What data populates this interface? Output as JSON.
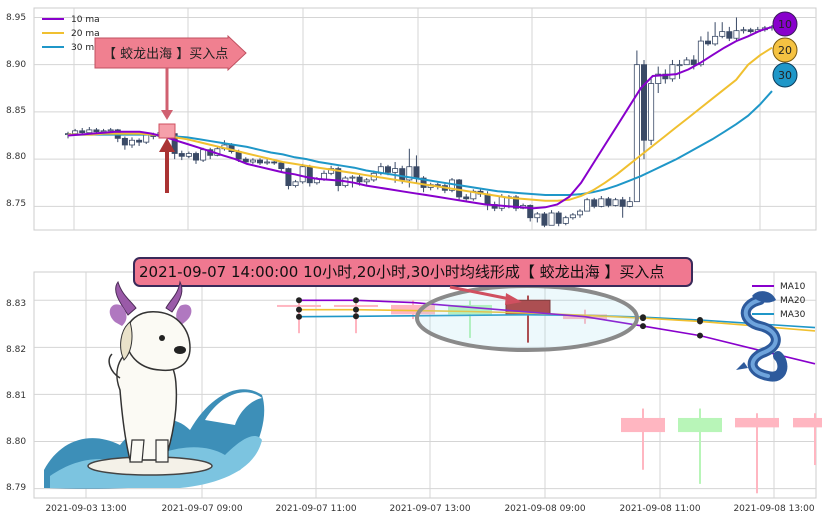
{
  "colors": {
    "ma10": "#8800cc",
    "ma20": "#f0c030",
    "ma30": "#1f97c8",
    "up": "#ffffff",
    "down": "#3a4a66",
    "annotation_fill": "#f08090",
    "arrow": "#aa3333",
    "ellipse": "#8a8a8a",
    "grid": "#d5d5d5"
  },
  "chart_data": [
    {
      "type": "candlestick",
      "panel": "top",
      "ylim": [
        8.725,
        8.96
      ],
      "yticks": [
        "8.95",
        "8.90",
        "8.85",
        "8.80",
        "8.75"
      ],
      "legend": {
        "placement": "top-left",
        "entries": [
          "10 ma",
          "20 ma",
          "30 ma"
        ]
      },
      "ma_circles": [
        "10",
        "20",
        "30"
      ],
      "annotation": {
        "label": "【 蛟龙出海 】买入点"
      },
      "candles": [
        [
          8.826,
          8.827,
          8.829,
          8.822
        ],
        [
          8.827,
          8.83,
          8.832,
          8.825
        ],
        [
          8.83,
          8.828,
          8.833,
          8.826
        ],
        [
          8.828,
          8.831,
          8.834,
          8.826
        ],
        [
          8.831,
          8.829,
          8.833,
          8.827
        ],
        [
          8.829,
          8.83,
          8.832,
          8.826
        ],
        [
          8.83,
          8.831,
          8.833,
          8.828
        ],
        [
          8.831,
          8.822,
          8.832,
          8.818
        ],
        [
          8.822,
          8.815,
          8.824,
          8.81
        ],
        [
          8.815,
          8.82,
          8.823,
          8.812
        ],
        [
          8.82,
          8.818,
          8.822,
          8.814
        ],
        [
          8.818,
          8.826,
          8.828,
          8.816
        ],
        [
          8.826,
          8.824,
          8.828,
          8.821
        ],
        [
          8.824,
          8.828,
          8.831,
          8.822
        ],
        [
          8.828,
          8.827,
          8.83,
          8.824
        ],
        [
          8.827,
          8.806,
          8.828,
          8.8
        ],
        [
          8.806,
          8.803,
          8.809,
          8.799
        ],
        [
          8.803,
          8.806,
          8.808,
          8.801
        ],
        [
          8.806,
          8.799,
          8.808,
          8.795
        ],
        [
          8.799,
          8.81,
          8.812,
          8.797
        ],
        [
          8.81,
          8.804,
          8.812,
          8.8
        ],
        [
          8.804,
          8.811,
          8.814,
          8.803
        ],
        [
          8.811,
          8.815,
          8.82,
          8.809
        ],
        [
          8.815,
          8.808,
          8.817,
          8.806
        ],
        [
          8.808,
          8.8,
          8.81,
          8.797
        ],
        [
          8.8,
          8.797,
          8.802,
          8.795
        ],
        [
          8.797,
          8.799,
          8.801,
          8.795
        ],
        [
          8.799,
          8.796,
          8.801,
          8.794
        ],
        [
          8.796,
          8.797,
          8.8,
          8.794
        ],
        [
          8.797,
          8.796,
          8.799,
          8.794
        ],
        [
          8.796,
          8.79,
          8.797,
          8.787
        ],
        [
          8.79,
          8.772,
          8.791,
          8.768
        ],
        [
          8.772,
          8.776,
          8.778,
          8.77
        ],
        [
          8.776,
          8.792,
          8.795,
          8.774
        ],
        [
          8.792,
          8.775,
          8.794,
          8.771
        ],
        [
          8.775,
          8.779,
          8.781,
          8.773
        ],
        [
          8.779,
          8.785,
          8.788,
          8.777
        ],
        [
          8.785,
          8.79,
          8.793,
          8.783
        ],
        [
          8.79,
          8.772,
          8.792,
          8.766
        ],
        [
          8.772,
          8.78,
          8.782,
          8.77
        ],
        [
          8.78,
          8.781,
          8.783,
          8.77
        ],
        [
          8.781,
          8.776,
          8.785,
          8.772
        ],
        [
          8.776,
          8.778,
          8.78,
          8.773
        ],
        [
          8.778,
          8.785,
          8.788,
          8.776
        ],
        [
          8.785,
          8.792,
          8.796,
          8.783
        ],
        [
          8.792,
          8.786,
          8.794,
          8.783
        ],
        [
          8.786,
          8.79,
          8.797,
          8.775
        ],
        [
          8.79,
          8.778,
          8.793,
          8.774
        ],
        [
          8.778,
          8.792,
          8.811,
          8.77
        ],
        [
          8.792,
          8.78,
          8.804,
          8.775
        ],
        [
          8.78,
          8.77,
          8.782,
          8.765
        ],
        [
          8.77,
          8.773,
          8.775,
          8.767
        ],
        [
          8.773,
          8.772,
          8.775,
          8.768
        ],
        [
          8.772,
          8.767,
          8.774,
          8.764
        ],
        [
          8.767,
          8.778,
          8.78,
          8.765
        ],
        [
          8.778,
          8.76,
          8.779,
          8.757
        ],
        [
          8.76,
          8.758,
          8.763,
          8.755
        ],
        [
          8.758,
          8.766,
          8.768,
          8.756
        ],
        [
          8.766,
          8.763,
          8.768,
          8.76
        ],
        [
          8.763,
          8.752,
          8.766,
          8.746
        ],
        [
          8.752,
          8.748,
          8.755,
          8.745
        ],
        [
          8.748,
          8.76,
          8.763,
          8.745
        ],
        [
          8.76,
          8.76,
          8.762,
          8.748
        ],
        [
          8.76,
          8.748,
          8.762,
          8.745
        ],
        [
          8.748,
          8.751,
          8.753,
          8.747
        ],
        [
          8.751,
          8.738,
          8.752,
          8.734
        ],
        [
          8.738,
          8.742,
          8.744,
          8.733
        ],
        [
          8.742,
          8.73,
          8.744,
          8.728
        ],
        [
          8.73,
          8.743,
          8.746,
          8.73
        ],
        [
          8.743,
          8.732,
          8.745,
          8.729
        ],
        [
          8.732,
          8.738,
          8.74,
          8.73
        ],
        [
          8.738,
          8.741,
          8.743,
          8.736
        ],
        [
          8.741,
          8.745,
          8.747,
          8.738
        ],
        [
          8.745,
          8.757,
          8.759,
          8.745
        ],
        [
          8.757,
          8.75,
          8.759,
          8.748
        ],
        [
          8.75,
          8.758,
          8.761,
          8.749
        ],
        [
          8.758,
          8.751,
          8.76,
          8.749
        ],
        [
          8.751,
          8.757,
          8.759,
          8.75
        ],
        [
          8.757,
          8.75,
          8.76,
          8.738
        ],
        [
          8.75,
          8.755,
          8.76,
          8.749
        ],
        [
          8.755,
          8.9,
          8.915,
          8.755
        ],
        [
          8.9,
          8.82,
          8.905,
          8.8
        ],
        [
          8.82,
          8.88,
          8.885,
          8.815
        ],
        [
          8.88,
          8.89,
          8.898,
          8.87
        ],
        [
          8.89,
          8.885,
          8.895,
          8.88
        ],
        [
          8.885,
          8.9,
          8.905,
          8.882
        ],
        [
          8.9,
          8.9,
          8.905,
          8.885
        ],
        [
          8.9,
          8.905,
          8.908,
          8.9
        ],
        [
          8.905,
          8.9,
          8.91,
          8.895
        ],
        [
          8.9,
          8.925,
          8.93,
          8.898
        ],
        [
          8.925,
          8.922,
          8.935,
          8.92
        ],
        [
          8.922,
          8.93,
          8.945,
          8.92
        ],
        [
          8.93,
          8.935,
          8.945,
          8.928
        ],
        [
          8.935,
          8.928,
          8.94,
          8.925
        ],
        [
          8.928,
          8.936,
          8.95,
          8.926
        ],
        [
          8.936,
          8.937,
          8.94,
          8.933
        ],
        [
          8.937,
          8.935,
          8.939,
          8.933
        ],
        [
          8.935,
          8.937,
          8.94,
          8.934
        ],
        [
          8.937,
          8.939,
          8.941,
          8.935
        ],
        [
          8.939,
          8.94,
          8.942,
          8.936
        ]
      ],
      "ma10": [
        8.825,
        8.826,
        8.827,
        8.828,
        8.829,
        8.829,
        8.829,
        8.827,
        8.824,
        8.82,
        8.816,
        8.812,
        8.808,
        8.804,
        8.8,
        8.795,
        8.792,
        8.789,
        8.786,
        8.784,
        8.781,
        8.779,
        8.778,
        8.777,
        8.775,
        8.772,
        8.77,
        8.768,
        8.766,
        8.764,
        8.762,
        8.76,
        8.758,
        8.756,
        8.754,
        8.752,
        8.751,
        8.75,
        8.749,
        8.748,
        8.749,
        8.752,
        8.76,
        8.775,
        8.795,
        8.815,
        8.835,
        8.855,
        8.875,
        8.888,
        8.889,
        8.89,
        8.895,
        8.902,
        8.91,
        8.918,
        8.925,
        8.93,
        8.936,
        8.94
      ],
      "ma20": [
        8.826,
        8.826,
        8.826,
        8.827,
        8.827,
        8.827,
        8.827,
        8.826,
        8.825,
        8.823,
        8.821,
        8.818,
        8.815,
        8.812,
        8.809,
        8.806,
        8.803,
        8.8,
        8.797,
        8.795,
        8.793,
        8.791,
        8.789,
        8.787,
        8.785,
        8.783,
        8.781,
        8.779,
        8.777,
        8.775,
        8.773,
        8.771,
        8.769,
        8.767,
        8.765,
        8.763,
        8.761,
        8.759,
        8.758,
        8.757,
        8.756,
        8.756,
        8.757,
        8.761,
        8.767,
        8.775,
        8.784,
        8.794,
        8.804,
        8.814,
        8.824,
        8.834,
        8.844,
        8.854,
        8.864,
        8.874,
        8.884,
        8.9,
        8.91,
        8.918
      ],
      "ma30": [
        8.826,
        8.826,
        8.826,
        8.826,
        8.826,
        8.826,
        8.826,
        8.826,
        8.825,
        8.824,
        8.823,
        8.821,
        8.819,
        8.817,
        8.815,
        8.813,
        8.81,
        8.807,
        8.805,
        8.802,
        8.8,
        8.797,
        8.795,
        8.793,
        8.791,
        8.788,
        8.786,
        8.784,
        8.782,
        8.78,
        8.778,
        8.776,
        8.774,
        8.772,
        8.77,
        8.768,
        8.766,
        8.765,
        8.764,
        8.763,
        8.762,
        8.762,
        8.762,
        8.763,
        8.765,
        8.768,
        8.772,
        8.777,
        8.782,
        8.788,
        8.794,
        8.8,
        8.807,
        8.814,
        8.821,
        8.829,
        8.837,
        8.846,
        8.858,
        8.872
      ]
    },
    {
      "type": "candlestick",
      "panel": "bottom",
      "ylim": [
        8.788,
        8.836
      ],
      "yticks": [
        "8.83",
        "8.82",
        "8.81",
        "8.80",
        "8.79"
      ],
      "xticks": [
        "2021-09-03 13:00",
        "2021-09-07 09:00",
        "2021-09-07 11:00",
        "2021-09-07 13:00",
        "2021-09-08 09:00",
        "2021-09-08 11:00",
        "2021-09-08 13:00"
      ],
      "legend": {
        "placement": "top-right",
        "entries": [
          "MA10",
          "MA20",
          "MA30"
        ]
      },
      "banner": "2021-09-07 14:00:00 10小时,20小时,30小时均线形成【 蛟龙出海 】买入点",
      "candles": [
        {
          "x": 0,
          "open": 8.829,
          "close": 8.829,
          "high": 8.83,
          "low": 8.823,
          "color": "pink"
        },
        {
          "x": 1,
          "open": 8.829,
          "close": 8.829,
          "high": 8.83,
          "low": 8.823,
          "color": "pink"
        },
        {
          "x": 2,
          "open": 8.829,
          "close": 8.827,
          "high": 8.83,
          "low": 8.826,
          "color": "pink"
        },
        {
          "x": 3,
          "open": 8.827,
          "close": 8.829,
          "high": 8.83,
          "low": 8.822,
          "color": "green"
        },
        {
          "x": 4,
          "open": 8.83,
          "close": 8.827,
          "high": 8.831,
          "low": 8.821,
          "color": "red",
          "highlight": true
        },
        {
          "x": 5,
          "open": 8.827,
          "close": 8.826,
          "high": 8.828,
          "low": 8.825,
          "color": "pink"
        },
        {
          "x": 6,
          "open": 8.805,
          "close": 8.802,
          "high": 8.807,
          "low": 8.794,
          "color": "pink"
        },
        {
          "x": 7,
          "open": 8.802,
          "close": 8.805,
          "high": 8.807,
          "low": 8.791,
          "color": "green"
        },
        {
          "x": 8,
          "open": 8.805,
          "close": 8.803,
          "high": 8.806,
          "low": 8.789,
          "color": "pink"
        },
        {
          "x": 9,
          "open": 8.805,
          "close": 8.803,
          "high": 8.806,
          "low": 8.795,
          "color": "pink"
        }
      ],
      "ma10": [
        8.83,
        8.83,
        8.8295,
        8.8285,
        8.8275,
        8.8265,
        8.8245,
        8.8225,
        8.8195,
        8.8165
      ],
      "ma20": [
        8.828,
        8.828,
        8.8278,
        8.8276,
        8.8273,
        8.8268,
        8.8262,
        8.8255,
        8.8245,
        8.8235
      ],
      "ma30": [
        8.8265,
        8.8266,
        8.8267,
        8.8268,
        8.8269,
        8.8268,
        8.8264,
        8.8258,
        8.825,
        8.8242
      ]
    }
  ]
}
